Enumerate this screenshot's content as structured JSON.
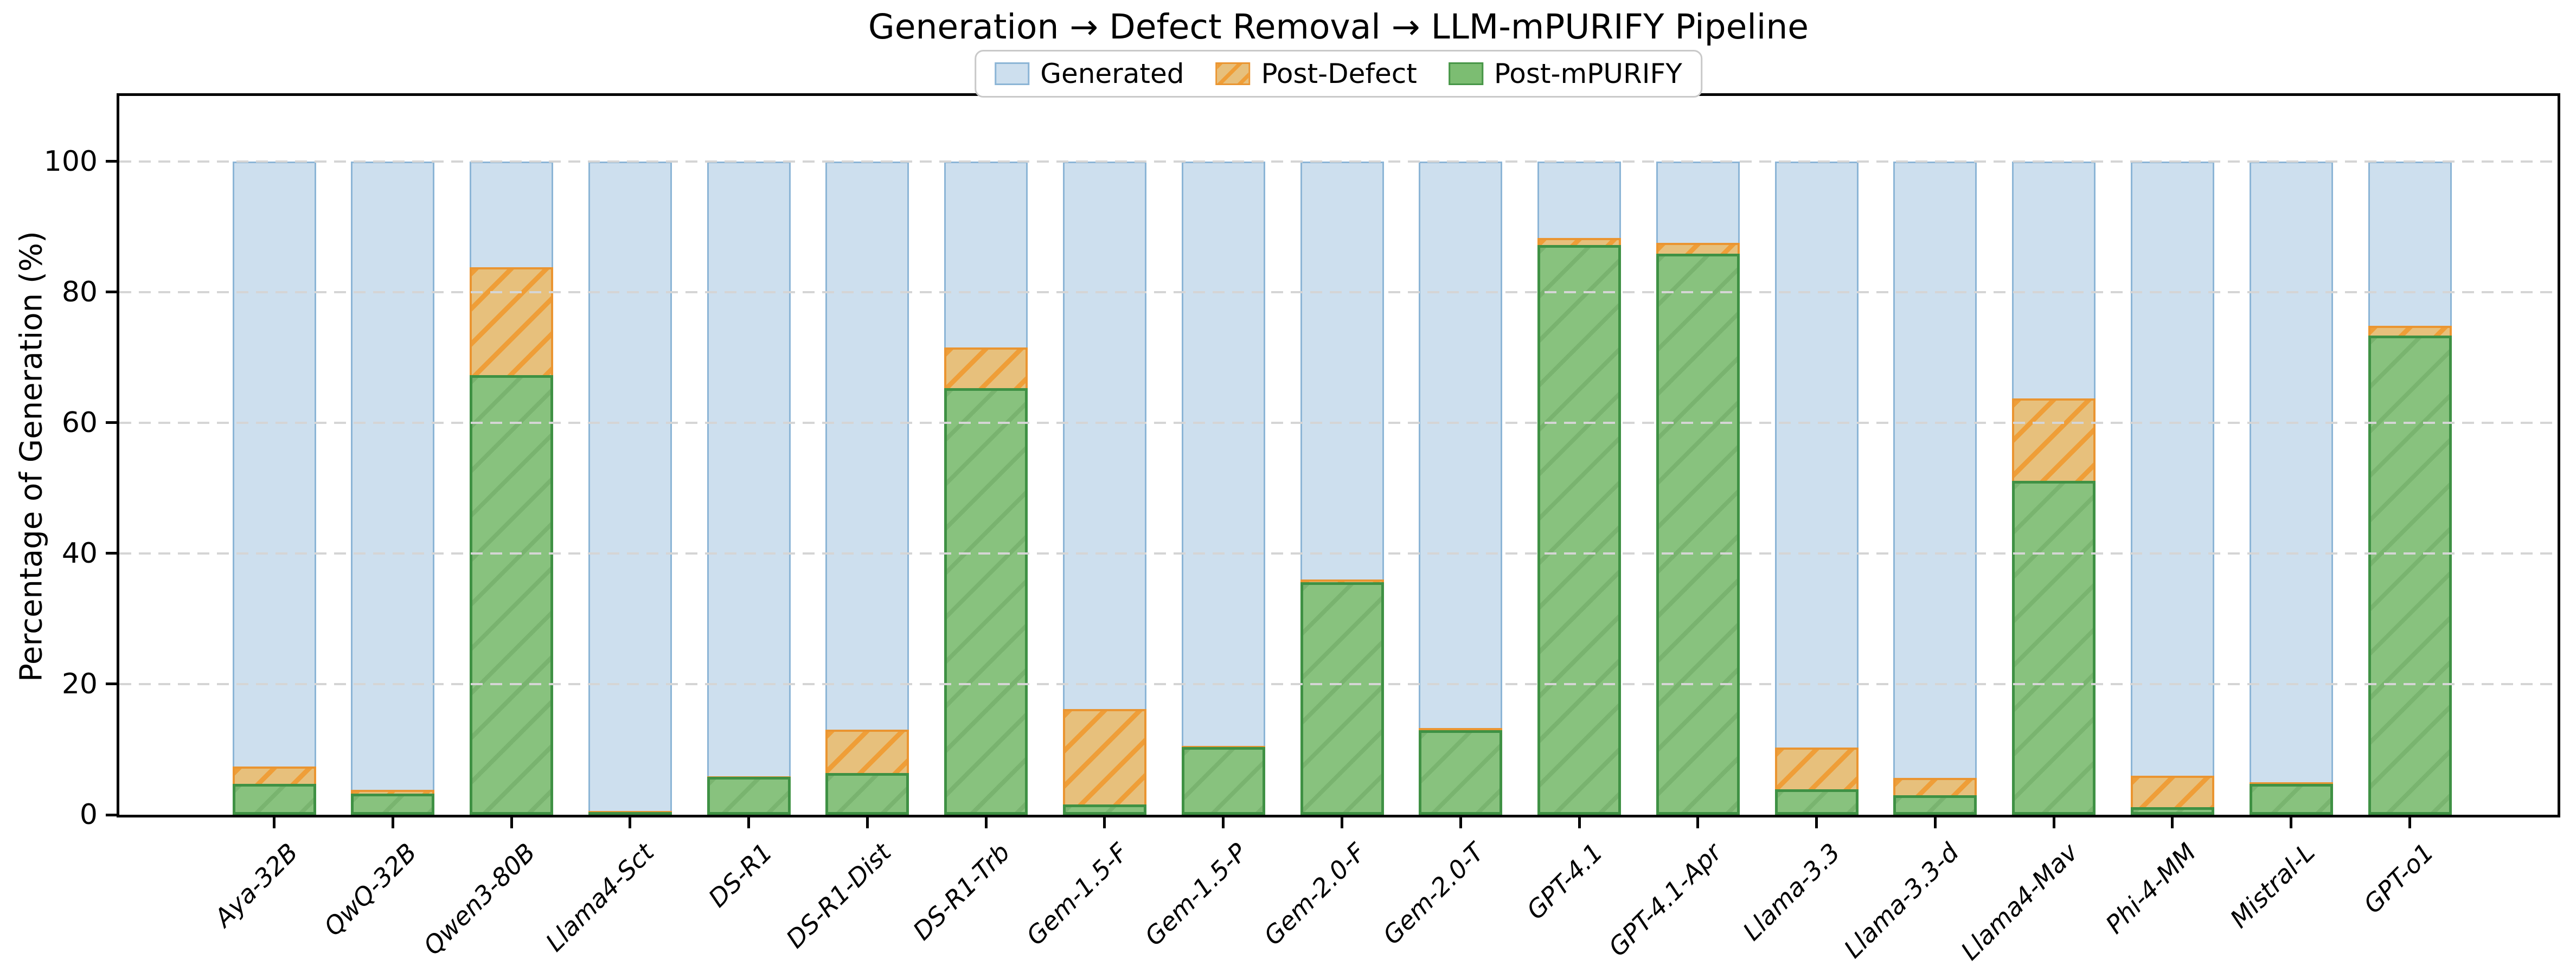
{
  "chart_data": {
    "type": "bar",
    "title": "Generation → Defect Removal → LLM-mPURIFY Pipeline",
    "xlabel": "",
    "ylabel": "Percentage of Generation (%)",
    "categories": [
      "Aya-32B",
      "QwQ-32B",
      "Qwen3-80B",
      "Llama4-Sct",
      "DS-R1",
      "DS-R1-Dist",
      "DS-R1-Trb",
      "Gem-1.5-F",
      "Gem-1.5-P",
      "Gem-2.0-F",
      "Gem-2.0-T",
      "GPT-4.1",
      "GPT-4.1-Apr",
      "Llama-3.3",
      "Llama-3.3-d",
      "Llama4-Mav",
      "Phi-4-MM",
      "Mistral-L",
      "GPT-o1"
    ],
    "series": [
      {
        "name": "Generated",
        "color": "#cddfee",
        "edge_color": "#8cb5d6",
        "hatch": "none",
        "values": [
          100,
          100,
          100,
          100,
          100,
          100,
          100,
          100,
          100,
          100,
          100,
          100,
          100,
          100,
          100,
          100,
          100,
          100,
          100
        ]
      },
      {
        "name": "Post-Defect",
        "color": "#e7c07c",
        "edge_color": "#ea9531",
        "hatch": "/",
        "hatch_color": "#ef9e38",
        "values": [
          7.4,
          3.8,
          83.8,
          0.6,
          5.9,
          13.0,
          71.5,
          16.2,
          10.5,
          36.0,
          13.3,
          88.3,
          87.5,
          10.3,
          5.6,
          63.7,
          6.0,
          5.0,
          74.8
        ]
      },
      {
        "name": "Post-mPURIFY",
        "color": "#88c27e",
        "edge_color": "#3f9144",
        "hatch": "faint /",
        "values": [
          4.7,
          3.2,
          67.3,
          0.4,
          5.8,
          6.4,
          65.3,
          1.6,
          10.4,
          35.6,
          12.9,
          87.2,
          85.9,
          3.9,
          3.0,
          51.1,
          1.2,
          4.7,
          73.3
        ]
      }
    ],
    "stacking": "overlay",
    "ylim": [
      0,
      110
    ],
    "yticks": [
      0,
      20,
      40,
      60,
      80,
      100
    ],
    "grid": {
      "axis": "y",
      "style": "dashed",
      "color": "#d5d5d5",
      "drawn_over_bars": true
    },
    "legend_position": "upper center",
    "xtick_label_style": "italic, rotated 45 degrees",
    "background": "#ffffff",
    "spine_color": "#000000"
  }
}
